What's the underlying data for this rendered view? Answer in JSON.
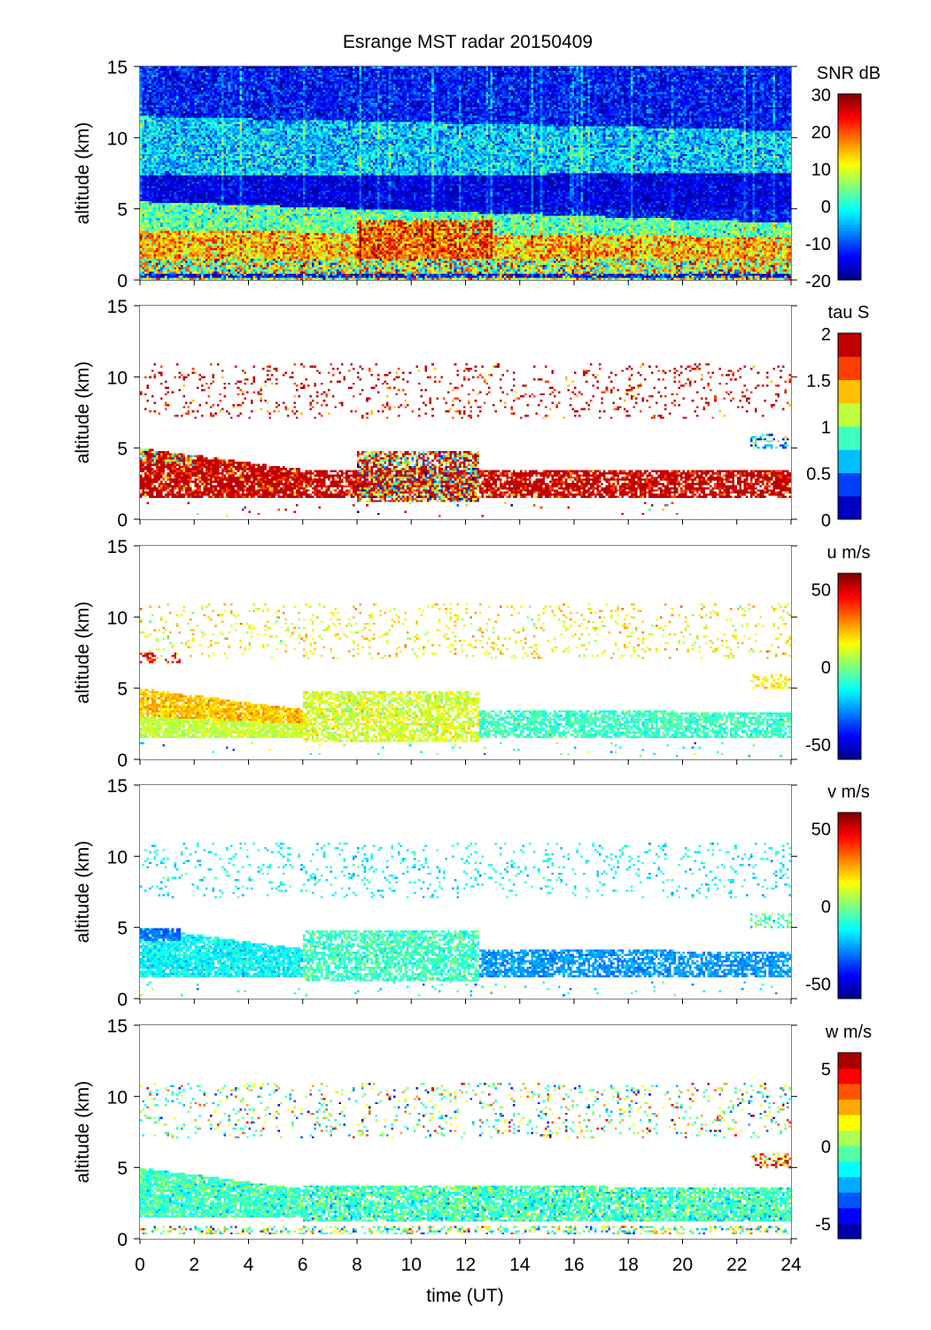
{
  "chart_data": {
    "type": "heatmap",
    "title": "Esrange MST radar 20150409",
    "xlabel": "time (UT)",
    "xlim": [
      0,
      24
    ],
    "xticks": [
      0,
      2,
      4,
      6,
      8,
      10,
      12,
      14,
      16,
      18,
      20,
      22,
      24
    ],
    "grid_resolution": {
      "time_cols": 288,
      "alt_rows": 100
    },
    "panels": [
      {
        "ylabel": "altitude (km)",
        "ylim": [
          0,
          15
        ],
        "yticks": [
          0,
          5,
          10,
          15
        ],
        "colorbar_label": "SNR dB",
        "clim": [
          -20,
          30
        ],
        "cticks": [
          -20,
          -10,
          0,
          10,
          20,
          30
        ],
        "levels": 0,
        "layers": [
          [
            0,
            24,
            0,
            15,
            0,
            15,
            -13,
            4,
            1
          ],
          [
            0,
            24,
            7,
            11.5,
            6.5,
            10.5,
            -4,
            5,
            1
          ],
          [
            0,
            24,
            5,
            7.3,
            5,
            7.5,
            -15,
            3,
            1
          ],
          [
            0,
            24,
            3,
            5.5,
            3,
            4,
            3,
            5,
            1
          ],
          [
            0,
            24,
            1.5,
            3.5,
            1.5,
            3,
            14,
            6,
            1
          ],
          [
            8,
            13,
            1.2,
            4.2,
            1.2,
            4.2,
            19,
            6,
            0.9
          ],
          [
            0,
            24,
            0,
            1.5,
            0,
            1.5,
            8,
            10,
            1
          ],
          [
            0,
            24,
            0.2,
            0.5,
            0.2,
            0.5,
            -15,
            4,
            0.8
          ]
        ]
      },
      {
        "ylabel": "altitude (km)",
        "ylim": [
          0,
          15
        ],
        "yticks": [
          0,
          5,
          10,
          15
        ],
        "colorbar_label": "tau S",
        "clim": [
          0,
          2
        ],
        "cticks": [
          0,
          0.5,
          1,
          1.5,
          2
        ],
        "levels": 8,
        "layers": [
          [
            0,
            24,
            7,
            11,
            7,
            11,
            1.9,
            0.3,
            0.1
          ],
          [
            0,
            6,
            1.5,
            5,
            1.5,
            3.5,
            1.95,
            0.3,
            0.9
          ],
          [
            6,
            24,
            1.5,
            3.5,
            1.5,
            3.5,
            1.95,
            0.25,
            0.8
          ],
          [
            8,
            12.5,
            1.2,
            4.8,
            1.2,
            4.8,
            1.5,
            0.7,
            0.75
          ],
          [
            0,
            2,
            4,
            5,
            3.8,
            4.5,
            1.3,
            0.6,
            0.6
          ],
          [
            22.5,
            24,
            5,
            6,
            5,
            6,
            0.6,
            0.3,
            0.4
          ],
          [
            0,
            24,
            0.2,
            1.2,
            0.2,
            1.2,
            1.5,
            0.8,
            0.02
          ]
        ]
      },
      {
        "ylabel": "altitude (km)",
        "ylim": [
          0,
          15
        ],
        "yticks": [
          0,
          5,
          10,
          15
        ],
        "colorbar_label": "u m/s",
        "clim": [
          -60,
          60
        ],
        "cticks": [
          -50,
          0,
          50
        ],
        "levels": 0,
        "layers": [
          [
            0,
            24,
            7,
            11,
            7,
            11,
            15,
            8,
            0.1
          ],
          [
            0,
            1.5,
            6.8,
            7.5,
            6.8,
            7.5,
            45,
            6,
            0.4
          ],
          [
            0,
            6,
            1.5,
            3,
            1.5,
            2.5,
            8,
            4,
            0.9
          ],
          [
            0,
            6,
            3,
            5,
            2.5,
            3.5,
            22,
            5,
            0.9
          ],
          [
            6,
            12.5,
            1.2,
            4.8,
            1.2,
            4.8,
            10,
            6,
            0.75
          ],
          [
            12.5,
            24,
            1.5,
            3.5,
            1.5,
            3.3,
            -8,
            5,
            0.75
          ],
          [
            22.5,
            24,
            5,
            6,
            5,
            6,
            15,
            5,
            0.4
          ],
          [
            0,
            24,
            0.2,
            1.2,
            0.2,
            1.2,
            -10,
            15,
            0.03
          ]
        ]
      },
      {
        "ylabel": "altitude (km)",
        "ylim": [
          0,
          15
        ],
        "yticks": [
          0,
          5,
          10,
          15
        ],
        "colorbar_label": "v m/s",
        "clim": [
          -60,
          60
        ],
        "cticks": [
          -50,
          0,
          50
        ],
        "levels": 0,
        "layers": [
          [
            0,
            24,
            7,
            11,
            7,
            11,
            -15,
            6,
            0.1
          ],
          [
            0,
            6,
            1.5,
            5,
            1.5,
            3.5,
            -15,
            5,
            0.9
          ],
          [
            6,
            12.5,
            1.2,
            4.8,
            1.2,
            4.8,
            -8,
            6,
            0.75
          ],
          [
            12.5,
            24,
            1.5,
            3.5,
            1.5,
            3.3,
            -27,
            4,
            0.75
          ],
          [
            0,
            1.5,
            4,
            5,
            4,
            5,
            -32,
            4,
            0.8
          ],
          [
            22.5,
            24,
            5,
            6,
            5,
            6,
            -5,
            8,
            0.4
          ],
          [
            0,
            24,
            0.2,
            1.2,
            0.2,
            1.2,
            -15,
            10,
            0.03
          ]
        ]
      },
      {
        "ylabel": "altitude (km)",
        "ylim": [
          0,
          15
        ],
        "yticks": [
          0,
          5,
          10,
          15
        ],
        "colorbar_label": "w m/s",
        "clim": [
          -6,
          6
        ],
        "cticks": [
          -5,
          0,
          5
        ],
        "levels": 12,
        "layers": [
          [
            0,
            24,
            7,
            11,
            7,
            11,
            0,
            2.5,
            0.12
          ],
          [
            0,
            6,
            1.5,
            5,
            1.5,
            3.5,
            -0.8,
            0.7,
            0.9
          ],
          [
            6,
            24,
            1.2,
            3.8,
            1.2,
            3.6,
            -0.8,
            0.9,
            0.85
          ],
          [
            0,
            24,
            0.3,
            0.9,
            0.3,
            0.9,
            0,
            2,
            0.35
          ],
          [
            22.5,
            24,
            5,
            6,
            5,
            6,
            3,
            2,
            0.4
          ]
        ]
      }
    ]
  }
}
